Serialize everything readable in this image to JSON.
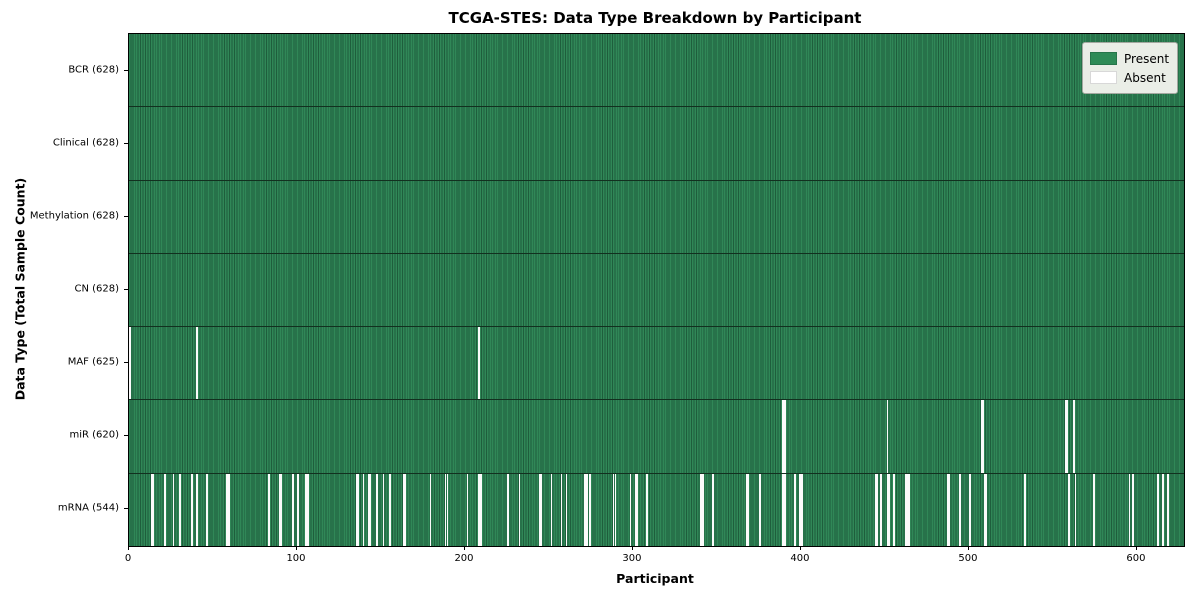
{
  "colors": {
    "present": "#2e8b57",
    "present_edge": "#1e5e3c",
    "absent": "#ffffff",
    "row_divider": "#12301f",
    "axis": "#000000",
    "legend_bg": "#eaeee7"
  },
  "chart_data": {
    "type": "heatmap",
    "title": "TCGA-STES: Data Type Breakdown by Participant",
    "xlabel": "Participant",
    "ylabel": "Data Type (Total Sample Count)",
    "n_participants": 628,
    "x_ticks": [
      0,
      100,
      200,
      300,
      400,
      500,
      600
    ],
    "grid": false,
    "legend_position": "upper right",
    "legend": [
      {
        "label": "Present",
        "color": "#2e8b57"
      },
      {
        "label": "Absent",
        "color": "#ffffff"
      }
    ],
    "rows": [
      {
        "label": "BCR (628)",
        "data_type": "BCR",
        "present_count": 628,
        "absent_participants": []
      },
      {
        "label": "Clinical (628)",
        "data_type": "Clinical",
        "present_count": 628,
        "absent_participants": []
      },
      {
        "label": "Methylation (628)",
        "data_type": "Methylation",
        "present_count": 628,
        "absent_participants": []
      },
      {
        "label": "CN (628)",
        "data_type": "CN",
        "present_count": 628,
        "absent_participants": []
      },
      {
        "label": "MAF (625)",
        "data_type": "MAF",
        "present_count": 625,
        "absent_participants": [
          0,
          40,
          208
        ]
      },
      {
        "label": "miR (620)",
        "data_type": "miR",
        "present_count": 620,
        "absent_participants": [
          389,
          390,
          451,
          507,
          508,
          557,
          558,
          562
        ]
      },
      {
        "label": "mRNA (544)",
        "data_type": "mRNA",
        "present_count": 544,
        "absent_participants": [
          13,
          14,
          21,
          26,
          30,
          37,
          40,
          46,
          58,
          59,
          83,
          89,
          90,
          97,
          100,
          105,
          106,
          135,
          136,
          139,
          142,
          143,
          147,
          151,
          155,
          163,
          164,
          179,
          188,
          189,
          201,
          208,
          209,
          225,
          232,
          244,
          245,
          251,
          257,
          260,
          271,
          272,
          274,
          288,
          289,
          298,
          301,
          302,
          308,
          340,
          341,
          347,
          367,
          368,
          375,
          389,
          390,
          396,
          399,
          400,
          444,
          445,
          447,
          451,
          452,
          455,
          462,
          463,
          464,
          487,
          488,
          494,
          500,
          509,
          510,
          533,
          559,
          563,
          574,
          595,
          597,
          612,
          615,
          618
        ]
      }
    ]
  }
}
